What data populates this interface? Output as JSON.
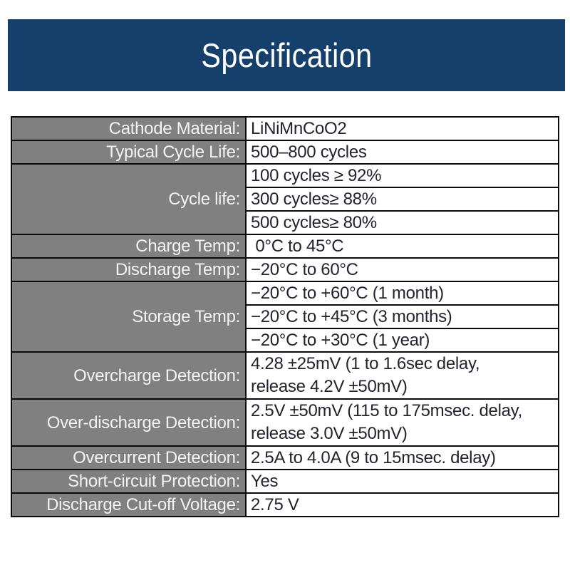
{
  "banner": {
    "title": "Specification",
    "background_color": "#14406b",
    "text_color": "#ffffff"
  },
  "table": {
    "label_background_color": "#808080",
    "label_text_color": "#f3f3f3",
    "value_background_color": "#ffffff",
    "value_text_color": "#232330",
    "border_color": "#0b0b0b",
    "rows": [
      {
        "label": "Cathode Material:",
        "cells": [
          [
            "LiNiMnCoO2"
          ]
        ]
      },
      {
        "label": "Typical Cycle Life:",
        "cells": [
          [
            "500–800 cycles"
          ]
        ]
      },
      {
        "label": "Cycle life:",
        "cells": [
          [
            "100 cycles ≥ 92%"
          ],
          [
            "300 cycles≥ 88%"
          ],
          [
            "500 cycles≥ 80%"
          ]
        ]
      },
      {
        "label": "Charge Temp:",
        "cells": [
          [
            " 0°C to 45°C"
          ]
        ]
      },
      {
        "label": "Discharge Temp:",
        "cells": [
          [
            "−20°C to 60°C"
          ]
        ]
      },
      {
        "label": "Storage Temp:",
        "cells": [
          [
            "−20°C to +60°C (1 month)"
          ],
          [
            "−20°C to +45°C (3 months)"
          ],
          [
            "−20°C to +30°C (1 year)"
          ]
        ]
      },
      {
        "label": "Overcharge Detection:",
        "cells": [
          [
            "4.28 ±25mV (1 to 1.6sec delay,",
            "release 4.2V ±50mV)"
          ]
        ]
      },
      {
        "label": "Over-discharge Detection:",
        "cells": [
          [
            "2.5V ±50mV (115 to 175msec. delay,",
            "release 3.0V ±50mV)"
          ]
        ]
      },
      {
        "label": "Overcurrent Detection:",
        "cells": [
          [
            "2.5A to 4.0A (9 to 15msec. delay)"
          ]
        ]
      },
      {
        "label": "Short-circuit Protection:",
        "cells": [
          [
            "Yes"
          ]
        ]
      },
      {
        "label": "Discharge Cut-off Voltage:",
        "cells": [
          [
            "2.75 V"
          ]
        ]
      }
    ]
  }
}
